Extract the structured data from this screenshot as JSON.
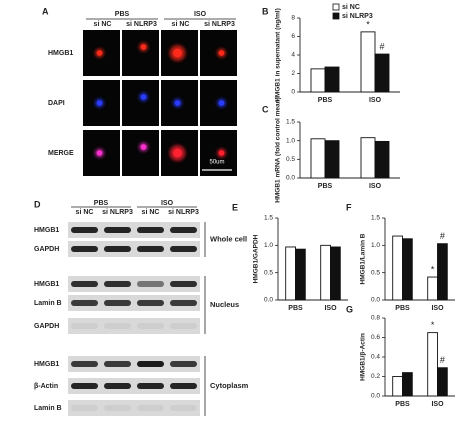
{
  "panel_a": {
    "label": "A",
    "groups": [
      "PBS",
      "ISO"
    ],
    "columns": [
      "si NC",
      "si NLRP3",
      "si NC",
      "si NLRP3"
    ],
    "rows": [
      "HMGB1",
      "DAPI",
      "MERGE"
    ],
    "scale": "50um"
  },
  "panel_d": {
    "label": "D",
    "groups": [
      "PBS",
      "ISO"
    ],
    "columns": [
      "si NC",
      "si NLRP3",
      "si NC",
      "si NLRP3"
    ],
    "rows": [
      "HMGB1",
      "GAPDH",
      "HMGB1",
      "Lamin B",
      "GAPDH",
      "HMGB1",
      "β-Actin",
      "Lamin B"
    ],
    "fractions": [
      "Whole cell",
      "Nucleus",
      "Cytoplasm"
    ]
  },
  "chart_data": [
    {
      "type": "bar",
      "label": "B",
      "ylabel": "HMGB1 in supernatant (ng/ml)",
      "categories": [
        "PBS",
        "ISO"
      ],
      "series": [
        {
          "name": "si NC",
          "color": "#ffffff",
          "values": [
            2.5,
            6.5
          ],
          "annotations": [
            null,
            "*"
          ]
        },
        {
          "name": "si NLRP3",
          "color": "#111111",
          "values": [
            2.7,
            4.1
          ],
          "annotations": [
            null,
            "#"
          ]
        }
      ],
      "ylim": [
        0,
        8
      ],
      "yticks": [
        0,
        2,
        4,
        6,
        8
      ]
    },
    {
      "type": "bar",
      "label": "C",
      "ylabel": "HMGB1 mRNA (fold control mean)",
      "categories": [
        "PBS",
        "ISO"
      ],
      "series": [
        {
          "color": "#ffffff",
          "values": [
            1.05,
            1.08
          ]
        },
        {
          "color": "#111111",
          "values": [
            1.0,
            0.98
          ]
        }
      ],
      "ylim": [
        0,
        1.5
      ],
      "yticks": [
        {
          "value": 0,
          "label": "0.0"
        },
        0.5,
        {
          "value": 1,
          "label": "1.0"
        },
        1.5
      ]
    },
    {
      "type": "bar",
      "label": "E",
      "ylabel": "HMGB1/GAPDH",
      "categories": [
        "PBS",
        "ISO"
      ],
      "series": [
        {
          "color": "#ffffff",
          "values": [
            0.97,
            1.0
          ]
        },
        {
          "color": "#111111",
          "values": [
            0.93,
            0.97
          ]
        }
      ],
      "ylim": [
        0,
        1.5
      ],
      "yticks": [
        {
          "value": 0,
          "label": "0.0"
        },
        0.5,
        {
          "value": 1,
          "label": "1.0"
        },
        1.5
      ]
    },
    {
      "type": "bar",
      "label": "F",
      "ylabel": "HMGB1/Lamin B",
      "categories": [
        "PBS",
        "ISO"
      ],
      "series": [
        {
          "color": "#ffffff",
          "values": [
            1.17,
            0.42
          ],
          "annotations": [
            null,
            "*"
          ]
        },
        {
          "color": "#111111",
          "values": [
            1.12,
            1.03
          ],
          "annotations": [
            null,
            "#"
          ]
        }
      ],
      "ylim": [
        0,
        1.5
      ],
      "yticks": [
        {
          "value": 0,
          "label": "0.0"
        },
        0.5,
        {
          "value": 1,
          "label": "1.0"
        },
        1.5
      ]
    },
    {
      "type": "bar",
      "label": "G",
      "ylabel": "HMGB1/β-Actin",
      "categories": [
        "PBS",
        "ISO"
      ],
      "series": [
        {
          "color": "#ffffff",
          "values": [
            0.2,
            0.65
          ],
          "annotations": [
            null,
            "*"
          ]
        },
        {
          "color": "#111111",
          "values": [
            0.24,
            0.29
          ],
          "annotations": [
            null,
            "#"
          ]
        }
      ],
      "ylim": [
        0,
        0.8
      ],
      "yticks": [
        {
          "value": 0,
          "label": "0.0"
        },
        0.2,
        0.4,
        0.6,
        0.8
      ]
    }
  ]
}
